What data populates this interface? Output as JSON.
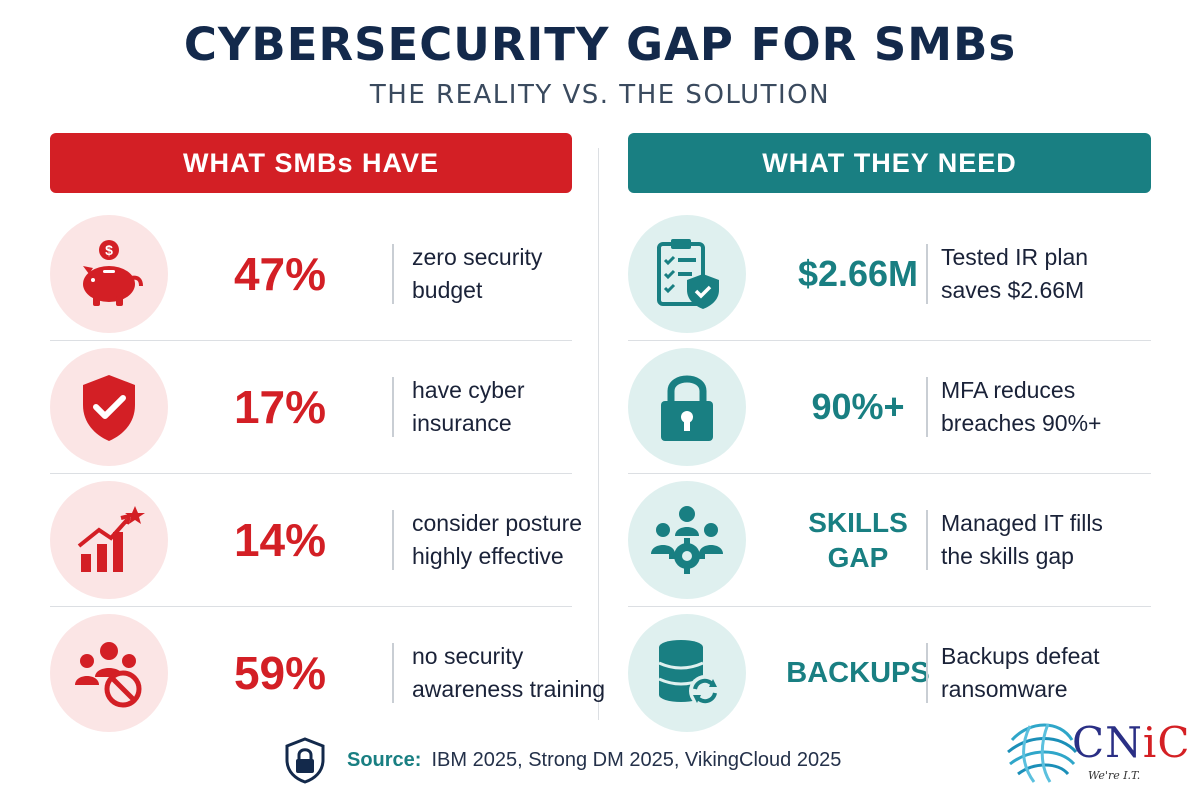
{
  "header": {
    "title": "CYBERSECURITY GAP FOR SMBs",
    "subtitle": "THE REALITY VS. THE SOLUTION"
  },
  "left": {
    "heading": "WHAT SMBs HAVE",
    "accent": "#d31f25",
    "rows": [
      {
        "icon": "piggy-bank-icon",
        "stat": "47%",
        "line1": "zero security",
        "line2": "budget"
      },
      {
        "icon": "shield-check-icon",
        "stat": "17%",
        "line1": "have cyber",
        "line2": "insurance"
      },
      {
        "icon": "growth-chart-star-icon",
        "stat": "14%",
        "line1": "consider posture",
        "line2": "highly effective"
      },
      {
        "icon": "people-prohibited-icon",
        "stat": "59%",
        "line1": "no security",
        "line2": "awareness training"
      }
    ]
  },
  "right": {
    "heading": "WHAT THEY NEED",
    "accent": "#197f82",
    "rows": [
      {
        "icon": "clipboard-shield-icon",
        "stat": "$2.66M",
        "line1": "Tested IR plan",
        "line2": "saves $2.66M"
      },
      {
        "icon": "padlock-icon",
        "stat": "90%+",
        "line1": "MFA reduces",
        "line2": "breaches 90%+"
      },
      {
        "icon": "team-gear-icon",
        "stat_line1": "SKILLS",
        "stat_line2": "GAP",
        "line1": "Managed IT fills",
        "line2": "the skills gap"
      },
      {
        "icon": "database-sync-icon",
        "stat": "BACKUPS",
        "line1": "Backups defeat",
        "line2": "ransomware"
      }
    ]
  },
  "footer": {
    "source_label": "Source:",
    "source_text": "IBM 2025, Strong DM 2025, VikingCloud 2025",
    "icon": "shield-lock-icon"
  },
  "logo": {
    "name_main": "CN",
    "name_accent": "iC",
    "tagline": "We're I.T.",
    "icon": "globe-logo-icon"
  }
}
